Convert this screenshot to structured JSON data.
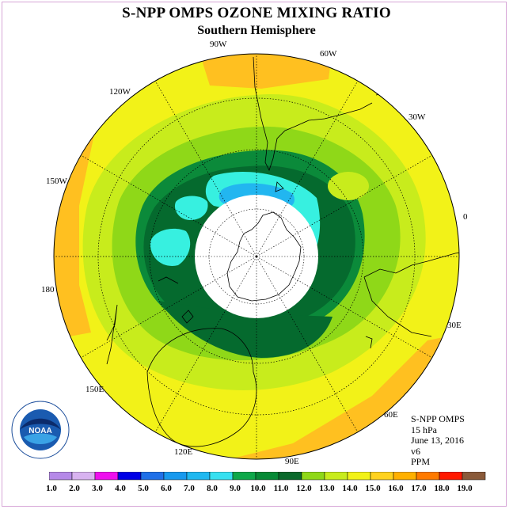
{
  "header": {
    "title": "S-NPP OMPS OZONE MIXING RATIO",
    "subtitle": "Southern Hemisphere"
  },
  "info": {
    "instrument": "S-NPP OMPS",
    "level": "15 hPa",
    "date": "June 13, 2016",
    "version": "v6",
    "units": "PPM"
  },
  "longitude_labels": [
    "90W",
    "60W",
    "30W",
    "0",
    "30E",
    "60E",
    "90E",
    "120E",
    "150E",
    "180",
    "150W",
    "120W"
  ],
  "colorbar": {
    "ticks": [
      "1.0",
      "2.0",
      "3.0",
      "4.0",
      "5.0",
      "6.0",
      "7.0",
      "8.0",
      "9.0",
      "10.0",
      "11.0",
      "12.0",
      "13.0",
      "14.0",
      "15.0",
      "16.0",
      "17.0",
      "18.0",
      "19.0"
    ],
    "colors": [
      "#b589e8",
      "#d8b3f0",
      "#ee10ee",
      "#0000e6",
      "#1f70e8",
      "#1799ee",
      "#1fb8f0",
      "#37e0f0",
      "#0ea84a",
      "#078a36",
      "#0b6a2c",
      "#8fd818",
      "#c8ec1c",
      "#f2f218",
      "#ffd21e",
      "#ffb000",
      "#ff7a00",
      "#ff1a00",
      "#8a5a3a"
    ]
  },
  "logo": {
    "text": "NOAA",
    "ring_text": "NATIONAL OCEANIC AND ATMOSPHERIC ADMINISTRATION · U.S. DEPARTMENT OF COMMERCE"
  },
  "colors": {
    "background_yellow": "#f2f218",
    "orange": "#ffc020",
    "lime": "#c8ec1c",
    "green_light": "#8fd818",
    "green_mid": "#0b8a3a",
    "green_dark": "#056a2e",
    "cyan": "#37f0e0",
    "blue": "#22b6f0",
    "frame": "#d7a6d7"
  }
}
